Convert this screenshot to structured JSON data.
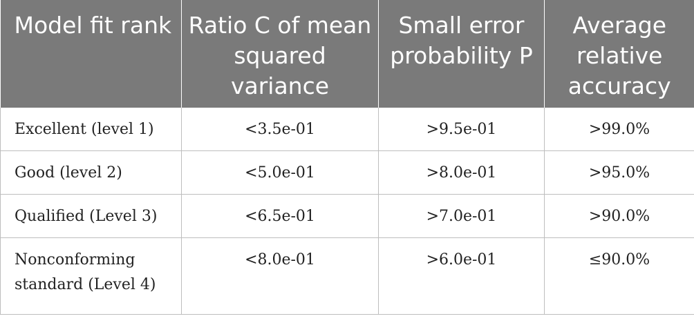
{
  "table": {
    "headers": [
      "Model fit rank",
      "Ratio C of mean squared variance",
      "Small error probability P",
      "Average relative accuracy"
    ],
    "rows": [
      [
        "Excellent (level 1)",
        "<3.5e-01",
        ">9.5e-01",
        ">99.0%"
      ],
      [
        "Good (level 2)",
        "<5.0e-01",
        ">8.0e-01",
        ">95.0%"
      ],
      [
        "Qualified (Level 3)",
        "<6.5e-01",
        ">7.0e-01",
        ">90.0%"
      ],
      [
        "Nonconforming standard (Level 4)",
        "<8.0e-01",
        ">6.0e-01",
        "≤90.0%"
      ]
    ]
  },
  "colors": {
    "header_background": "#7a7a7a",
    "header_text": "#ffffff",
    "border": "#bdbdbd",
    "body_text": "#222222"
  }
}
